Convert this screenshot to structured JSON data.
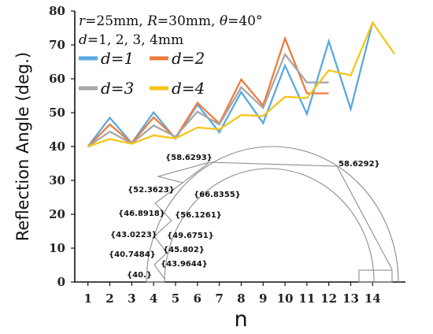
{
  "chart_data": {
    "type": "line",
    "xlabel": "n",
    "ylabel": "Reflection Angle (deg.)",
    "xlim": [
      0.4,
      15.5
    ],
    "ylim": [
      0,
      80
    ],
    "x_ticks": [
      1,
      2,
      3,
      4,
      5,
      6,
      7,
      8,
      9,
      10,
      11,
      12,
      13,
      14
    ],
    "y_ticks": [
      0,
      10,
      20,
      30,
      40,
      50,
      60,
      70,
      80
    ],
    "grid": false,
    "annotation_lines": [
      "r=25mm, R=30mm, θ=40°",
      "d=1, 2, 3, 4mm"
    ],
    "legend_placement": "top-left",
    "series": [
      {
        "name": "d=1",
        "color": "#5aa9e0",
        "x": [
          1,
          2,
          3,
          4,
          5,
          6,
          7,
          8,
          9,
          10,
          11,
          12,
          13,
          14
        ],
        "y": [
          40,
          48.5,
          41,
          50.1,
          42.3,
          52.4,
          44.2,
          56.1,
          46.9,
          63.9,
          49.6,
          71.1,
          51.1,
          76.6
        ]
      },
      {
        "name": "d=2",
        "color": "#ef7c3e",
        "x": [
          1,
          2,
          3,
          4,
          5,
          6,
          7,
          8,
          9,
          10,
          11,
          12
        ],
        "y": [
          40,
          46.5,
          41,
          48.6,
          42.6,
          52.9,
          46.8,
          59.8,
          52.1,
          71.9,
          55.7,
          55.7
        ]
      },
      {
        "name": "d=3",
        "color": "#a6a6a6",
        "x": [
          1,
          2,
          3,
          4,
          5,
          6,
          7,
          8,
          9,
          10,
          11,
          12
        ],
        "y": [
          40,
          44.4,
          40.9,
          46.2,
          42.9,
          50.3,
          46.5,
          57.5,
          51.4,
          67.2,
          58.9,
          58.9
        ]
      },
      {
        "name": "d=4",
        "color": "#f5c518",
        "x": [
          1,
          2,
          3,
          4,
          5,
          6,
          7,
          8,
          9,
          10,
          11,
          12,
          13,
          14,
          15
        ],
        "y": [
          40,
          42.2,
          40.8,
          43.3,
          42.4,
          45.6,
          45.1,
          49.3,
          49,
          54.7,
          54.3,
          62.5,
          61,
          76.6,
          67.3
        ]
      }
    ]
  },
  "inset_diagram": {
    "labels": [
      "{58.6293}",
      "58.6292}",
      "{52.3623}",
      "{66.8355}",
      "{46.8918}",
      "{56.1261}",
      "{43.0223}",
      "{49.6751}",
      "{40.7484}",
      "{45.802}",
      "{43.9644}",
      "{40.}"
    ],
    "stroke_color": "#8c8c8c"
  }
}
